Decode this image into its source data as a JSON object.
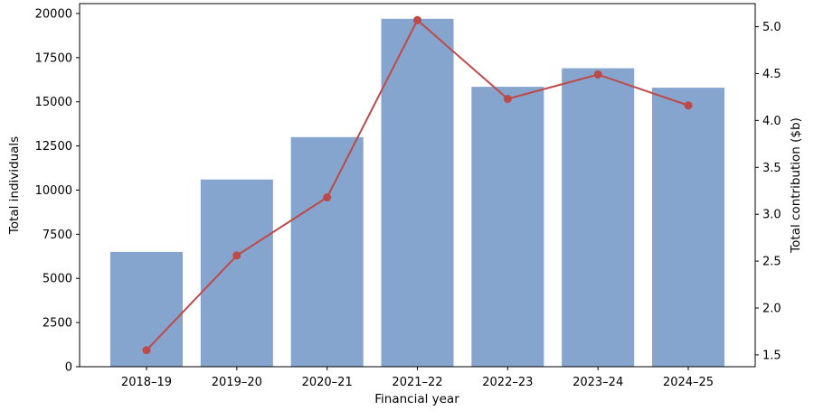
{
  "chart_data": {
    "type": "bar",
    "subtype": "bar+line dual-axis",
    "categories": [
      "2018–19",
      "2019–20",
      "2020–21",
      "2021–22",
      "2022–23",
      "2023–24",
      "2024–25"
    ],
    "series": [
      {
        "name": "Total individuals",
        "type": "bar",
        "axis": "left",
        "color": "#85a4ce",
        "values": [
          6500,
          10600,
          13000,
          19700,
          15850,
          16900,
          15800
        ]
      },
      {
        "name": "Total contribution ($b)",
        "type": "line",
        "axis": "right",
        "color": "#be4a47",
        "marker": "circle",
        "values": [
          1.55,
          2.56,
          3.18,
          5.07,
          4.23,
          4.49,
          4.16
        ]
      }
    ],
    "title": "",
    "xlabel": "Financial year",
    "ylabel_left": "Total individuals",
    "ylabel_right": "Total contribution ($b)",
    "left_axis": {
      "ticks": [
        0,
        2500,
        5000,
        7500,
        10000,
        12500,
        15000,
        17500,
        20000
      ],
      "tick_labels": [
        "0",
        "2500",
        "5000",
        "7500",
        "10000",
        "12500",
        "15000",
        "17500",
        "20000"
      ],
      "ylim": [
        0,
        20560
      ]
    },
    "right_axis": {
      "ticks": [
        1.5,
        2.0,
        2.5,
        3.0,
        3.5,
        4.0,
        4.5,
        5.0
      ],
      "tick_labels": [
        "1.5",
        "2.0",
        "2.5",
        "3.0",
        "3.5",
        "4.0",
        "4.5",
        "5.0"
      ],
      "ylim": [
        1.374,
        5.246
      ]
    },
    "grid": false,
    "legend": "none",
    "background": "#ffffff",
    "spine_color": "#000000"
  }
}
